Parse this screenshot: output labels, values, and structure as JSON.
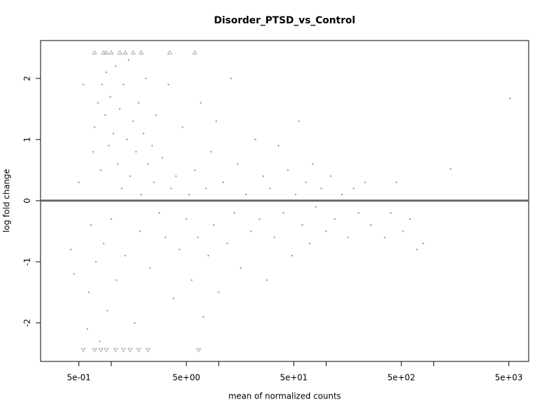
{
  "chart_data": {
    "type": "scatter",
    "title": "Disorder_PTSD_vs_Control",
    "xlabel": "mean of normalized counts",
    "ylabel": "log fold change",
    "xscale": "log",
    "xlim": [
      0.22,
      7660
    ],
    "ylim": [
      -2.63,
      2.62
    ],
    "xticks": [
      {
        "value": 0.5,
        "label": "5e-01"
      },
      {
        "value": 5,
        "label": "5e+00"
      },
      {
        "value": 50,
        "label": "5e+01"
      },
      {
        "value": 500,
        "label": "5e+02"
      },
      {
        "value": 5000,
        "label": "5e+03"
      }
    ],
    "xminorticks": [
      1,
      10,
      100,
      1000
    ],
    "yticks": [
      -2,
      -1,
      0,
      1,
      2
    ],
    "hline": 0,
    "hline_color": "#666666",
    "series": [
      {
        "color": "#999999",
        "marker": "dot",
        "x": [
          0.45,
          0.42,
          0.5,
          0.55,
          0.6,
          0.62,
          0.65,
          0.68,
          0.7,
          0.72,
          0.75,
          0.78,
          0.8,
          0.82,
          0.85,
          0.88,
          0.9,
          0.92,
          0.95,
          0.98,
          1.0,
          1.05,
          1.1,
          1.12,
          1.15,
          1.2,
          1.25,
          1.3,
          1.35,
          1.4,
          1.45,
          1.5,
          1.6,
          1.65,
          1.7,
          1.8,
          1.85,
          1.9,
          2.0,
          2.1,
          2.2,
          2.3,
          2.4,
          2.5,
          2.6,
          2.8,
          3.0,
          3.2,
          3.4,
          3.6,
          3.8,
          4.0,
          4.3,
          4.6,
          5.0,
          5.3,
          5.6,
          6.0,
          6.4,
          6.8,
          7.2,
          7.6,
          8.0,
          8.5,
          9.0,
          9.5,
          10,
          11,
          12,
          13,
          14,
          15,
          16,
          18,
          20,
          22,
          24,
          26,
          28,
          30,
          33,
          36,
          40,
          44,
          48,
          52,
          56,
          60,
          65,
          70,
          75,
          80,
          90,
          100,
          110,
          120,
          140,
          160,
          180,
          200,
          230,
          260,
          300,
          350,
          400,
          450,
          520,
          600,
          700,
          800,
          1440,
          5150
        ],
        "values": [
          -1.2,
          -0.8,
          0.3,
          1.9,
          -2.1,
          -1.5,
          -0.4,
          0.8,
          1.2,
          -1.0,
          1.6,
          -2.3,
          0.5,
          1.9,
          -0.7,
          1.4,
          2.1,
          -1.8,
          0.9,
          1.7,
          -0.3,
          1.1,
          2.2,
          -1.3,
          0.6,
          1.5,
          0.2,
          1.9,
          -0.9,
          1.0,
          2.3,
          0.4,
          1.3,
          -2.0,
          0.8,
          1.6,
          -0.5,
          0.1,
          1.1,
          2.0,
          0.6,
          -1.1,
          0.9,
          0.3,
          1.4,
          -0.2,
          0.7,
          -0.6,
          1.9,
          0.2,
          -1.6,
          0.4,
          -0.8,
          1.2,
          -0.3,
          0.1,
          -1.3,
          0.5,
          -0.6,
          1.6,
          -1.9,
          0.2,
          -0.9,
          0.8,
          -0.4,
          1.3,
          -1.5,
          0.3,
          -0.7,
          2.0,
          -0.2,
          0.6,
          -1.1,
          0.1,
          -0.5,
          1.0,
          -0.3,
          0.4,
          -1.3,
          0.2,
          -0.6,
          0.9,
          -0.2,
          0.5,
          -0.9,
          0.1,
          1.3,
          -0.4,
          0.3,
          -0.7,
          0.6,
          -0.1,
          0.2,
          -0.5,
          0.4,
          -0.3,
          0.1,
          -0.6,
          0.2,
          -0.2,
          0.3,
          -0.4,
          0.0,
          -0.6,
          -0.2,
          0.3,
          -0.5,
          -0.3,
          -0.8,
          -0.7,
          0.52,
          1.67
        ]
      },
      {
        "color": "#999999",
        "marker": "triangle-up",
        "x": [
          0.7,
          0.85,
          0.9,
          1.0,
          1.2,
          1.35,
          1.6,
          1.9,
          3.5,
          6.0
        ],
        "values": [
          2.42,
          2.42,
          2.42,
          2.42,
          2.42,
          2.42,
          2.42,
          2.42,
          2.42,
          2.42
        ]
      },
      {
        "color": "#999999",
        "marker": "triangle-down",
        "x": [
          0.55,
          0.7,
          0.8,
          0.9,
          1.1,
          1.3,
          1.5,
          1.8,
          2.2,
          6.5
        ],
        "values": [
          -2.44,
          -2.44,
          -2.44,
          -2.44,
          -2.44,
          -2.44,
          -2.44,
          -2.44,
          -2.44,
          -2.44
        ]
      }
    ]
  }
}
